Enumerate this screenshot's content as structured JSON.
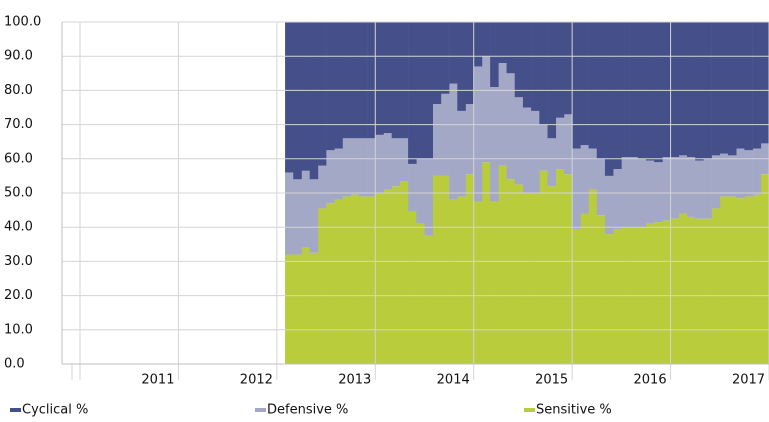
{
  "chart_data": {
    "type": "stacked-step-area",
    "categories": [
      null,
      null,
      null,
      null,
      null,
      null,
      null,
      null,
      null,
      "2011",
      null,
      null,
      null,
      null,
      null,
      null,
      null,
      null,
      null,
      null,
      null,
      "2012",
      null,
      null,
      null,
      null,
      null,
      null,
      null,
      null,
      null,
      null,
      null,
      "2013",
      null,
      null,
      null,
      null,
      null,
      null,
      null,
      null,
      null,
      null,
      null,
      "2014",
      null,
      null,
      null,
      null,
      null,
      null,
      null,
      null,
      null,
      null,
      null,
      "2015",
      null,
      null,
      null,
      null,
      null,
      null,
      null,
      null,
      null,
      null,
      null,
      "2016",
      null,
      null,
      null,
      null,
      null,
      null,
      null,
      null,
      null,
      null,
      null,
      "2017",
      null,
      null
    ],
    "series": [
      {
        "name": "Cyclical %",
        "color": "#45508a",
        "values": [
          null,
          null,
          null,
          null,
          null,
          null,
          null,
          null,
          null,
          null,
          null,
          null,
          null,
          null,
          null,
          null,
          null,
          null,
          null,
          null,
          null,
          null,
          null,
          null,
          null,
          44,
          46,
          43.5,
          46,
          42,
          37.5,
          37,
          34,
          34,
          34,
          34,
          33,
          32.5,
          34,
          34,
          41.5,
          40,
          40,
          24,
          21,
          18,
          26,
          24,
          13,
          10,
          19,
          12,
          15,
          22,
          25,
          26,
          30,
          34,
          28,
          27,
          37,
          36,
          37,
          40,
          45,
          43,
          39.5,
          39.5,
          40,
          40.5,
          41,
          39.5,
          39.5,
          39,
          39.5,
          40.5,
          40,
          39,
          38.5,
          39,
          37,
          37.5,
          37,
          35.5
        ]
      },
      {
        "name": "Defensive %",
        "color": "#a3a8c6",
        "values": [
          null,
          null,
          null,
          null,
          null,
          null,
          null,
          null,
          null,
          null,
          null,
          null,
          null,
          null,
          null,
          null,
          null,
          null,
          null,
          null,
          null,
          null,
          null,
          null,
          null,
          24,
          22,
          22.5,
          21.5,
          12.5,
          15.5,
          15,
          17,
          16.5,
          17,
          17,
          17,
          16.5,
          14,
          12.5,
          14,
          19,
          22.5,
          21,
          24,
          34,
          25,
          20.5,
          39.5,
          31,
          33.5,
          30,
          31,
          25.5,
          25,
          24,
          13.5,
          14,
          15,
          17.5,
          23.5,
          20,
          12,
          16.5,
          17,
          17.5,
          20.5,
          20.5,
          20,
          18.5,
          17.5,
          18.5,
          18,
          17,
          17.5,
          17,
          17.5,
          15.5,
          12.5,
          12,
          14.5,
          13.5,
          13.5,
          9
        ]
      },
      {
        "name": "Sensitive %",
        "color": "#b9cc3c",
        "values": [
          null,
          null,
          null,
          null,
          null,
          null,
          null,
          null,
          null,
          null,
          null,
          null,
          null,
          null,
          null,
          null,
          null,
          null,
          null,
          null,
          null,
          null,
          null,
          null,
          null,
          32,
          32,
          34,
          32.5,
          45.5,
          47,
          48,
          49,
          49.5,
          49,
          49,
          50,
          51,
          52,
          53.5,
          44.5,
          41,
          37.5,
          55,
          55,
          48,
          49,
          55.5,
          47.5,
          59,
          47.5,
          58,
          54,
          52.5,
          50,
          50,
          56.5,
          52,
          57,
          55.5,
          39.5,
          44,
          51,
          43.5,
          38,
          39.5,
          40,
          40,
          40,
          41,
          41.5,
          42,
          42.5,
          44,
          43,
          42.5,
          42.5,
          45.5,
          49,
          49,
          48.5,
          49,
          49.5,
          55.5
        ]
      }
    ],
    "ylim": [
      0,
      100
    ],
    "yticks": [
      {
        "value": 0,
        "label": "0.0"
      },
      {
        "value": 10,
        "label": "10.0"
      },
      {
        "value": 20,
        "label": "20.0"
      },
      {
        "value": 30,
        "label": "30.0"
      },
      {
        "value": 40,
        "label": "40.0"
      },
      {
        "value": 50,
        "label": "50.0"
      },
      {
        "value": 60,
        "label": "60.0"
      },
      {
        "value": 70,
        "label": "70.0"
      },
      {
        "value": 80,
        "label": "80.0"
      },
      {
        "value": 90,
        "label": "90.0"
      },
      {
        "value": 100,
        "label": "100.0"
      }
    ],
    "grid": true
  }
}
